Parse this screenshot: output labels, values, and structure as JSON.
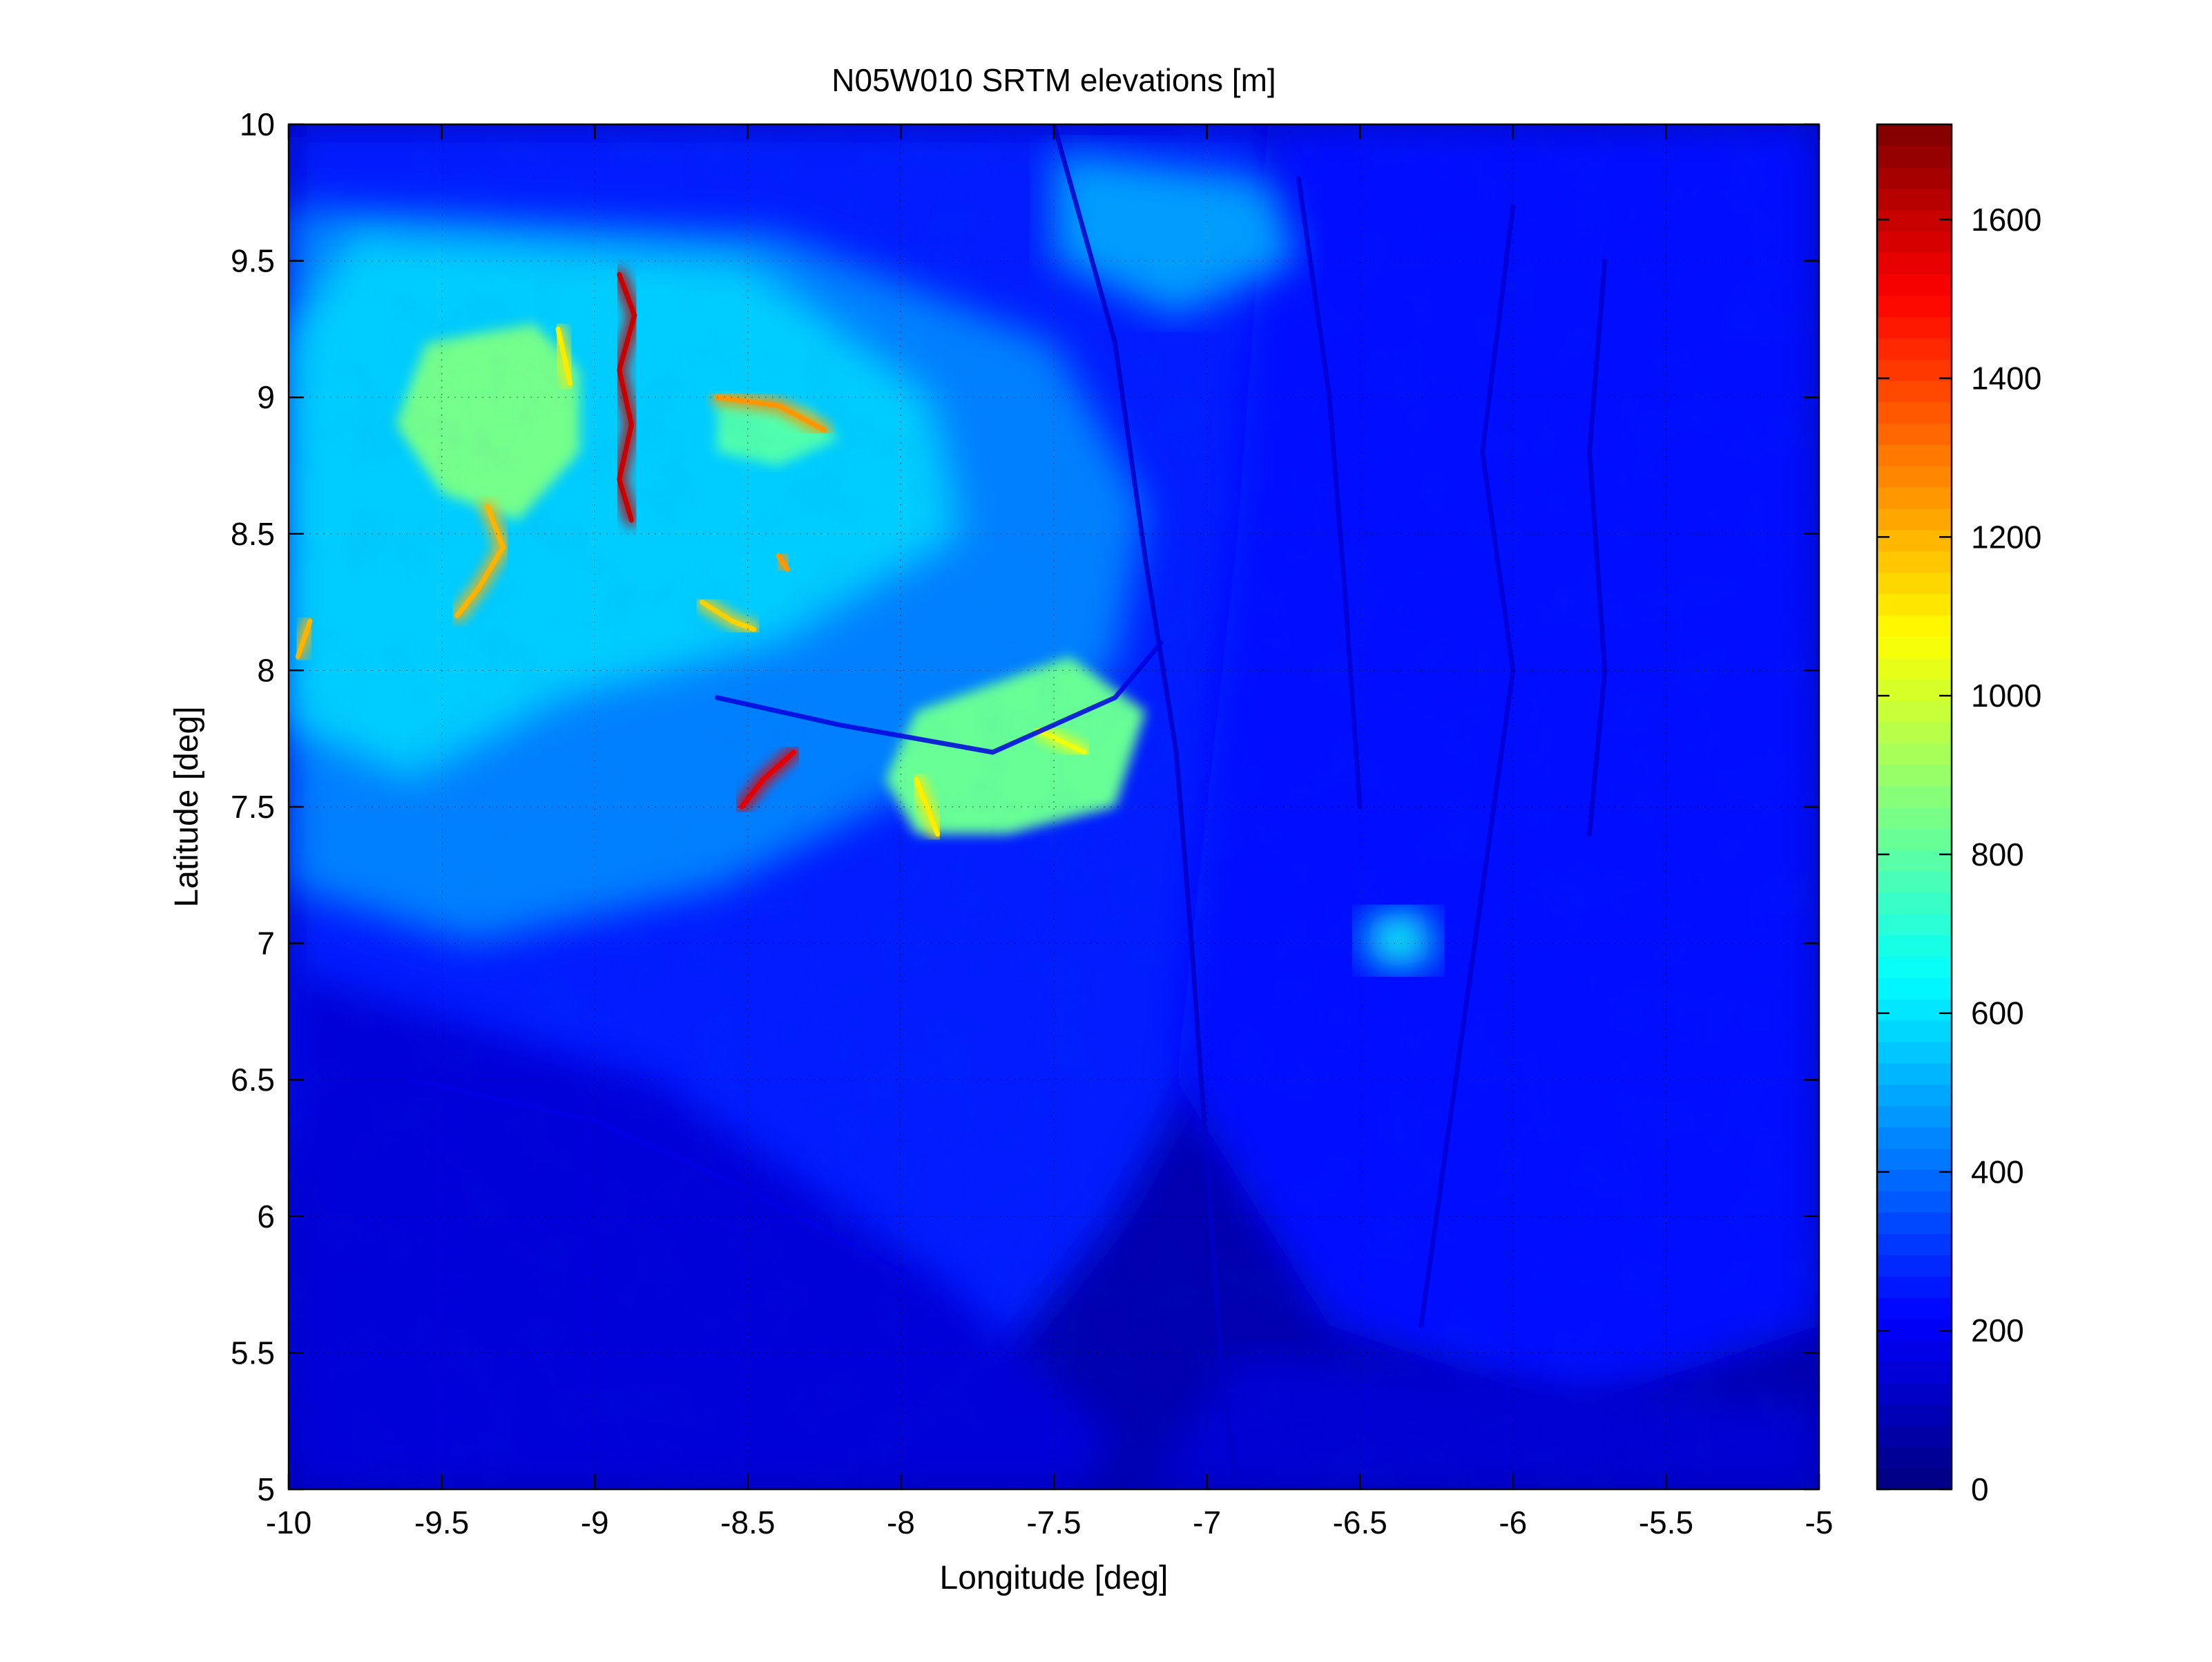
{
  "chart_data": {
    "type": "heatmap",
    "title": "N05W010 SRTM elevations [m]",
    "xlabel": "Longitude [deg]",
    "ylabel": "Latitude [deg]",
    "xlim": [
      -10,
      -5
    ],
    "ylim": [
      5,
      10
    ],
    "xticks": [
      -10,
      -9.5,
      -9,
      -8.5,
      -8,
      -7.5,
      -7,
      -6.5,
      -6,
      -5.5,
      -5
    ],
    "xtick_labels": [
      "-10",
      "-9.5",
      "-9",
      "-8.5",
      "-8",
      "-7.5",
      "-7",
      "-6.5",
      "-6",
      "-5.5",
      "-5"
    ],
    "yticks": [
      5,
      5.5,
      6,
      6.5,
      7,
      7.5,
      8,
      8.5,
      9,
      9.5,
      10
    ],
    "ytick_labels": [
      "5",
      "5.5",
      "6",
      "6.5",
      "7",
      "7.5",
      "8",
      "8.5",
      "9",
      "9.5",
      "10"
    ],
    "grid": true,
    "colormap": "jet",
    "colorbar": {
      "range": [
        0,
        1720
      ],
      "ticks": [
        0,
        200,
        400,
        600,
        800,
        1000,
        1200,
        1400,
        1600
      ],
      "tick_labels": [
        "0",
        "200",
        "400",
        "600",
        "800",
        "1000",
        "1200",
        "1400",
        "1600"
      ]
    },
    "features": [
      {
        "kind": "region",
        "level": 260,
        "points": [
          [
            -10,
            10
          ],
          [
            -6.8,
            10
          ],
          [
            -6.6,
            9
          ],
          [
            -6.8,
            7
          ],
          [
            -7.3,
            6
          ],
          [
            -7.8,
            5.3
          ],
          [
            -10,
            5.3
          ],
          [
            -10,
            7
          ]
        ]
      },
      {
        "kind": "region",
        "level": 230,
        "points": [
          [
            -6.8,
            10
          ],
          [
            -5,
            10
          ],
          [
            -5,
            5.6
          ],
          [
            -5.8,
            5.3
          ],
          [
            -6.6,
            5.6
          ],
          [
            -7.1,
            6.5
          ],
          [
            -6.9,
            8.5
          ]
        ]
      },
      {
        "kind": "region",
        "level": 90,
        "points": [
          [
            -10,
            6.3
          ],
          [
            -9.2,
            5.95
          ],
          [
            -8.7,
            5.5
          ],
          [
            -8.6,
            5
          ],
          [
            -10,
            5
          ]
        ]
      },
      {
        "kind": "region",
        "level": 150,
        "points": [
          [
            -10,
            6.9
          ],
          [
            -8.8,
            6.5
          ],
          [
            -7.9,
            5.8
          ],
          [
            -7.3,
            5.2
          ],
          [
            -7.4,
            5
          ],
          [
            -10,
            5
          ]
        ]
      },
      {
        "kind": "region",
        "level": 140,
        "points": [
          [
            -6.9,
            5.5
          ],
          [
            -5,
            5.3
          ],
          [
            -5,
            5
          ],
          [
            -7.2,
            5
          ]
        ]
      },
      {
        "kind": "region",
        "level": 430,
        "points": [
          [
            -10,
            9.7
          ],
          [
            -8.4,
            9.6
          ],
          [
            -7.5,
            9.2
          ],
          [
            -7.2,
            8.6
          ],
          [
            -7.3,
            8.0
          ],
          [
            -7.9,
            7.6
          ],
          [
            -8.6,
            7.2
          ],
          [
            -9.4,
            7.0
          ],
          [
            -10,
            7.2
          ]
        ]
      },
      {
        "kind": "region",
        "level": 560,
        "points": [
          [
            -9.8,
            9.6
          ],
          [
            -8.5,
            9.5
          ],
          [
            -7.9,
            9.0
          ],
          [
            -7.8,
            8.5
          ],
          [
            -8.4,
            8.1
          ],
          [
            -9.1,
            7.9
          ],
          [
            -9.6,
            7.6
          ],
          [
            -10,
            7.8
          ],
          [
            -10,
            9.2
          ]
        ]
      },
      {
        "kind": "region",
        "level": 480,
        "points": [
          [
            -7.5,
            9.9
          ],
          [
            -6.8,
            9.8
          ],
          [
            -6.7,
            9.5
          ],
          [
            -7.1,
            9.3
          ],
          [
            -7.5,
            9.5
          ]
        ]
      },
      {
        "kind": "region",
        "level": 840,
        "points": [
          [
            -9.55,
            9.2
          ],
          [
            -9.2,
            9.27
          ],
          [
            -9.05,
            9.1
          ],
          [
            -9.05,
            8.8
          ],
          [
            -9.25,
            8.55
          ],
          [
            -9.5,
            8.65
          ],
          [
            -9.65,
            8.9
          ]
        ]
      },
      {
        "kind": "region",
        "level": 780,
        "points": [
          [
            -8.6,
            9.0
          ],
          [
            -8.3,
            8.95
          ],
          [
            -8.2,
            8.85
          ],
          [
            -8.4,
            8.75
          ],
          [
            -8.6,
            8.8
          ]
        ]
      },
      {
        "kind": "region",
        "level": 820,
        "points": [
          [
            -7.95,
            7.85
          ],
          [
            -7.45,
            8.05
          ],
          [
            -7.2,
            7.85
          ],
          [
            -7.3,
            7.5
          ],
          [
            -7.65,
            7.4
          ],
          [
            -7.95,
            7.4
          ],
          [
            -8.05,
            7.6
          ]
        ]
      },
      {
        "kind": "region",
        "level": 660,
        "points": [
          [
            -6.45,
            7.1
          ],
          [
            -6.3,
            7.12
          ],
          [
            -6.25,
            6.95
          ],
          [
            -6.4,
            6.9
          ],
          [
            -6.5,
            7.0
          ]
        ]
      },
      {
        "kind": "ridge",
        "level": 1600,
        "points": [
          [
            -8.92,
            9.45
          ],
          [
            -8.87,
            9.3
          ],
          [
            -8.92,
            9.1
          ],
          [
            -8.88,
            8.9
          ],
          [
            -8.92,
            8.7
          ],
          [
            -8.88,
            8.55
          ]
        ]
      },
      {
        "kind": "ridge",
        "level": 1550,
        "points": [
          [
            -8.52,
            7.5
          ],
          [
            -8.45,
            7.6
          ],
          [
            -8.35,
            7.7
          ]
        ]
      },
      {
        "kind": "ridge",
        "level": 1200,
        "points": [
          [
            -9.35,
            8.6
          ],
          [
            -9.3,
            8.45
          ],
          [
            -9.38,
            8.3
          ],
          [
            -9.45,
            8.2
          ]
        ]
      },
      {
        "kind": "ridge",
        "level": 1200,
        "points": [
          [
            -9.97,
            8.05
          ],
          [
            -9.93,
            8.18
          ]
        ]
      },
      {
        "kind": "ridge",
        "level": 1250,
        "points": [
          [
            -8.6,
            9.0
          ],
          [
            -8.4,
            8.97
          ],
          [
            -8.25,
            8.88
          ]
        ]
      },
      {
        "kind": "ridge",
        "level": 1150,
        "points": [
          [
            -8.65,
            8.25
          ],
          [
            -8.55,
            8.18
          ],
          [
            -8.48,
            8.15
          ]
        ]
      },
      {
        "kind": "ridge",
        "level": 1250,
        "points": [
          [
            -8.4,
            8.42
          ],
          [
            -8.37,
            8.37
          ]
        ]
      },
      {
        "kind": "ridge",
        "level": 1100,
        "points": [
          [
            -9.12,
            9.25
          ],
          [
            -9.08,
            9.05
          ]
        ]
      },
      {
        "kind": "ridge",
        "level": 1100,
        "points": [
          [
            -7.95,
            7.6
          ],
          [
            -7.88,
            7.4
          ]
        ]
      },
      {
        "kind": "ridge",
        "level": 1050,
        "points": [
          [
            -7.55,
            7.78
          ],
          [
            -7.4,
            7.7
          ]
        ]
      },
      {
        "kind": "channel",
        "level": 120,
        "points": [
          [
            -7.5,
            10
          ],
          [
            -7.3,
            9.2
          ],
          [
            -7.2,
            8.4
          ],
          [
            -7.1,
            7.7
          ],
          [
            -7.05,
            7.0
          ],
          [
            -7.0,
            6.2
          ],
          [
            -6.95,
            5.4
          ],
          [
            -6.9,
            5
          ]
        ]
      },
      {
        "kind": "channel",
        "level": 140,
        "points": [
          [
            -6.0,
            9.7
          ],
          [
            -6.1,
            8.8
          ],
          [
            -6.0,
            8.0
          ],
          [
            -6.1,
            7.2
          ],
          [
            -6.2,
            6.4
          ],
          [
            -6.3,
            5.6
          ]
        ]
      },
      {
        "kind": "channel",
        "level": 130,
        "points": [
          [
            -5.7,
            9.5
          ],
          [
            -5.75,
            8.8
          ],
          [
            -5.7,
            8.0
          ],
          [
            -5.75,
            7.4
          ]
        ]
      },
      {
        "kind": "channel",
        "level": 140,
        "points": [
          [
            -6.7,
            9.8
          ],
          [
            -6.6,
            9.0
          ],
          [
            -6.55,
            8.3
          ],
          [
            -6.5,
            7.5
          ]
        ]
      },
      {
        "kind": "channel",
        "level": 160,
        "points": [
          [
            -8.6,
            7.9
          ],
          [
            -8.2,
            7.8
          ],
          [
            -7.7,
            7.7
          ],
          [
            -7.3,
            7.9
          ],
          [
            -7.15,
            8.1
          ]
        ]
      },
      {
        "kind": "channel",
        "level": 170,
        "points": [
          [
            -9.6,
            6.5
          ],
          [
            -9.0,
            6.35
          ],
          [
            -8.5,
            6.1
          ],
          [
            -8.0,
            5.8
          ]
        ]
      }
    ]
  }
}
